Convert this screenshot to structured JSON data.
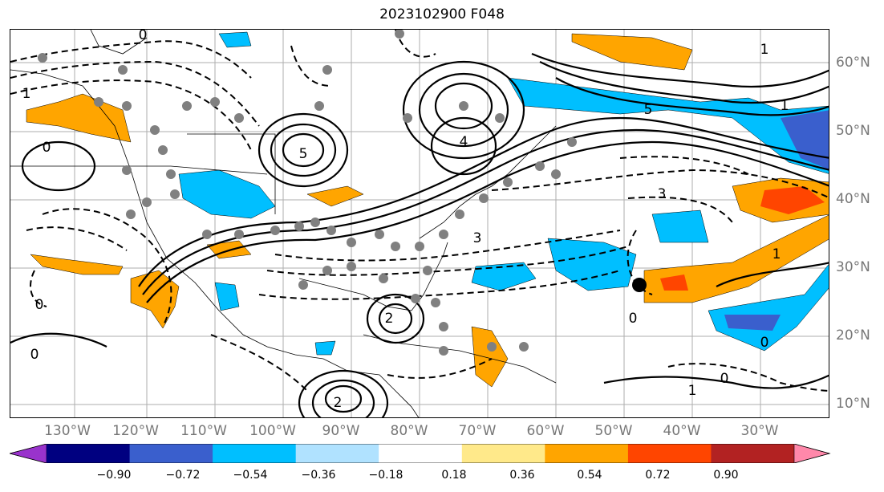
{
  "title": "2023102900 F048",
  "lon_labels": [
    "130°W",
    "120°W",
    "110°W",
    "100°W",
    "90°W",
    "80°W",
    "70°W",
    "60°W",
    "50°W",
    "40°W",
    "30°W"
  ],
  "lat_labels": [
    "60°N",
    "50°N",
    "40°N",
    "30°N",
    "20°N",
    "10°N"
  ],
  "contour_labels": [
    "0",
    "0",
    "1",
    "1",
    "4",
    "5",
    "5",
    "3",
    "3",
    "1",
    "1",
    "0",
    "0",
    "0",
    "0",
    "0",
    "2",
    "2",
    "1"
  ],
  "colorbar": {
    "ticks": [
      "−0.90",
      "−0.72",
      "−0.54",
      "−0.36",
      "−0.18",
      "0.18",
      "0.36",
      "0.54",
      "0.72",
      "0.90"
    ],
    "colors": [
      "#9933cc",
      "#000080",
      "#3a5fcd",
      "#00bfff",
      "#b0e2ff",
      "#ffffff",
      "#ffe98a",
      "#ffa500",
      "#ff4500",
      "#b22222",
      "#ff88aa"
    ]
  },
  "marker_color": "#000000"
}
